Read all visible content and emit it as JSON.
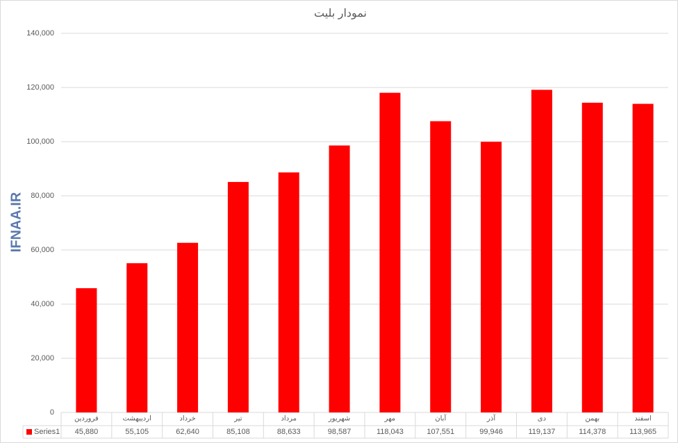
{
  "chart_data": {
    "type": "bar",
    "title": "نمودار بلیت",
    "watermark": "IFNAA.IR",
    "categories": [
      "فروردین",
      "اردیبهشت",
      "خرداد",
      "تیر",
      "مرداد",
      "شهریور",
      "مهر",
      "آبان",
      "آذر",
      "دی",
      "بهمن",
      "اسفند"
    ],
    "series": [
      {
        "name": "Series1",
        "color": "#ff0000",
        "values": [
          45880,
          55105,
          62640,
          85108,
          88633,
          98587,
          118043,
          107551,
          99946,
          119137,
          114378,
          113965
        ],
        "value_labels": [
          "45,880",
          "55,105",
          "62,640",
          "85,108",
          "88,633",
          "98,587",
          "118,043",
          "107,551",
          "99,946",
          "119,137",
          "114,378",
          "113,965"
        ]
      }
    ],
    "ylim": [
      0,
      140000
    ],
    "yticks": [
      0,
      {
        "value": 20000,
        "label": "20,000"
      },
      {
        "value": 40000,
        "label": "40,000"
      },
      {
        "value": 60000,
        "label": "60,000"
      },
      {
        "value": 80000,
        "label": "80,000"
      },
      {
        "value": 100000,
        "label": "100,000"
      },
      {
        "value": 120000,
        "label": "120,000"
      },
      {
        "value": 140000,
        "label": "140,000"
      }
    ],
    "grid": true
  }
}
